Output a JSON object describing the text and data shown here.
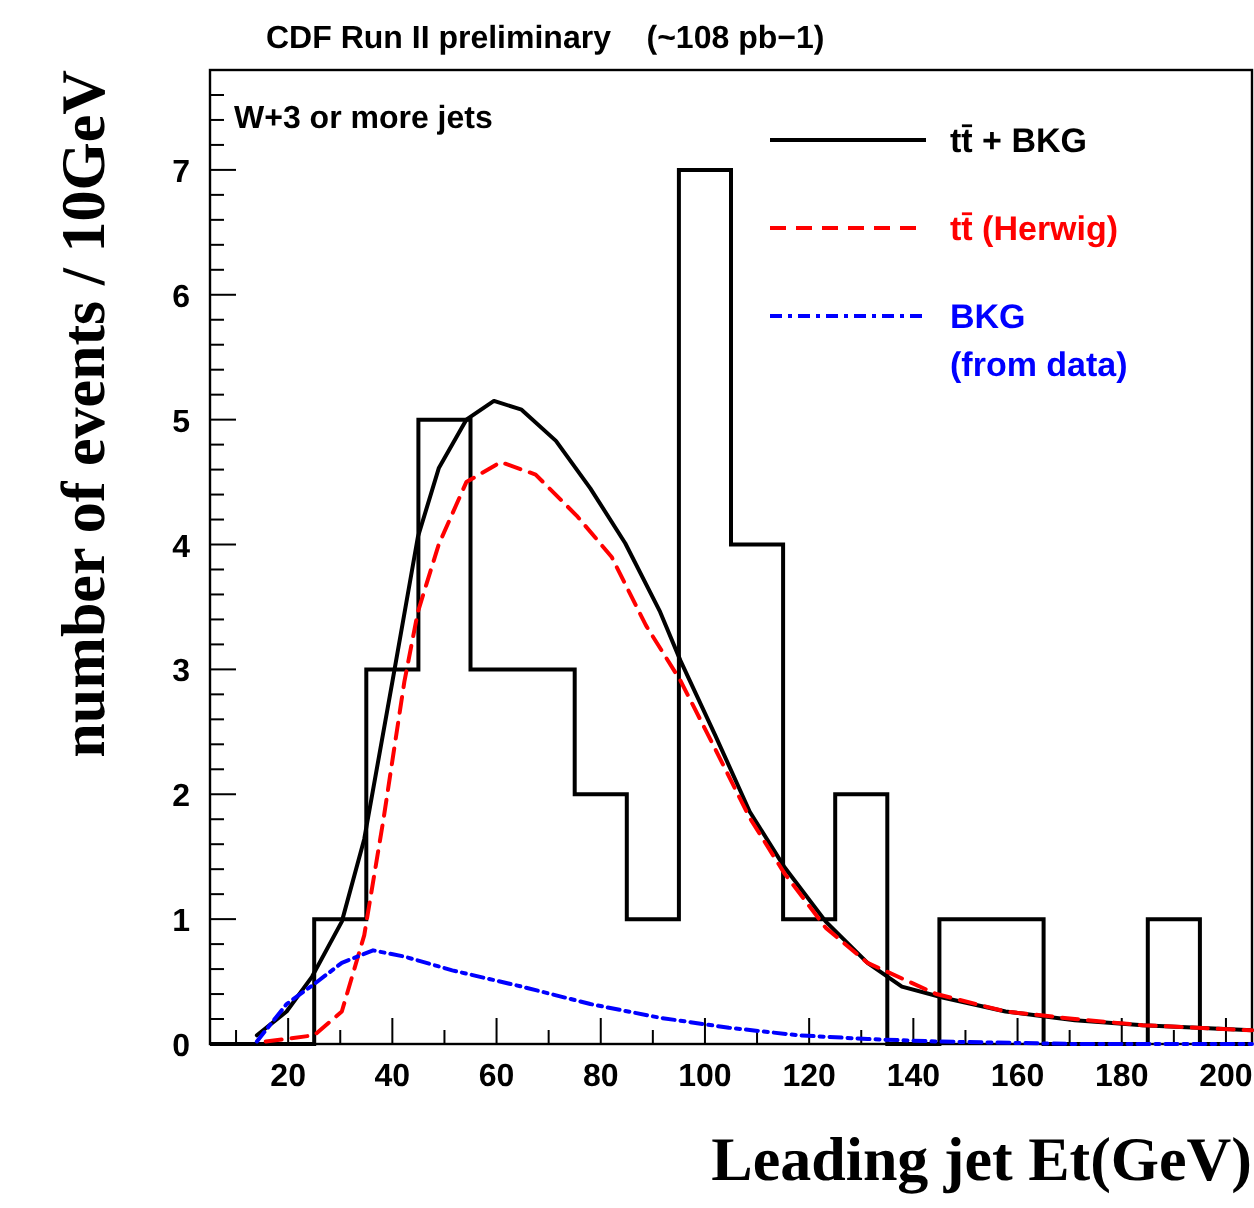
{
  "chart_data": {
    "type": "histogram",
    "title": "CDF Run II preliminary    (~108 pb−1)",
    "xlabel": "Leading jet Et(GeV)",
    "ylabel": "number of events / 10GeV",
    "annotations": [
      "W+3 or more jets"
    ],
    "xlim": [
      5,
      205
    ],
    "ylim": [
      0,
      7.8
    ],
    "xticks": [
      {
        "value": 10,
        "label": null
      },
      20,
      {
        "value": 30,
        "label": null
      },
      40,
      {
        "value": 50,
        "label": null
      },
      60,
      {
        "value": 70,
        "label": null
      },
      80,
      {
        "value": 90,
        "label": null
      },
      100,
      {
        "value": 110,
        "label": null
      },
      120,
      {
        "value": 130,
        "label": null
      },
      140,
      {
        "value": 150,
        "label": null
      },
      160,
      {
        "value": 170,
        "label": null
      },
      180,
      {
        "value": 190,
        "label": null
      },
      200
    ],
    "yticks": [
      0,
      {
        "value": 0.2,
        "label": null
      },
      {
        "value": 0.4,
        "label": null
      },
      {
        "value": 0.6,
        "label": null
      },
      {
        "value": 0.8,
        "label": null
      },
      1,
      {
        "value": 1.2,
        "label": null
      },
      {
        "value": 1.4,
        "label": null
      },
      {
        "value": 1.6,
        "label": null
      },
      {
        "value": 1.8,
        "label": null
      },
      2,
      {
        "value": 2.2,
        "label": null
      },
      {
        "value": 2.4,
        "label": null
      },
      {
        "value": 2.6,
        "label": null
      },
      {
        "value": 2.8,
        "label": null
      },
      3,
      {
        "value": 3.2,
        "label": null
      },
      {
        "value": 3.4,
        "label": null
      },
      {
        "value": 3.6,
        "label": null
      },
      {
        "value": 3.8,
        "label": null
      },
      4,
      {
        "value": 4.2,
        "label": null
      },
      {
        "value": 4.4,
        "label": null
      },
      {
        "value": 4.6,
        "label": null
      },
      {
        "value": 4.8,
        "label": null
      },
      5,
      {
        "value": 5.2,
        "label": null
      },
      {
        "value": 5.4,
        "label": null
      },
      {
        "value": 5.6,
        "label": null
      },
      {
        "value": 5.8,
        "label": null
      },
      6,
      {
        "value": 6.2,
        "label": null
      },
      {
        "value": 6.4,
        "label": null
      },
      {
        "value": 6.6,
        "label": null
      },
      {
        "value": 6.8,
        "label": null
      },
      7,
      {
        "value": 7.2,
        "label": null
      },
      {
        "value": 7.4,
        "label": null
      },
      {
        "value": 7.6,
        "label": null
      }
    ],
    "legend": "top right",
    "grid": false,
    "series": [
      {
        "color": "#000000",
        "bins": [
          5,
          15,
          25,
          35,
          45,
          55,
          65,
          75,
          85,
          95,
          105,
          115,
          125,
          135,
          145,
          155,
          165,
          175,
          185,
          195,
          205
        ],
        "values": [
          0,
          0,
          1,
          3,
          5,
          3,
          3,
          2,
          1,
          7,
          4,
          1,
          2,
          0,
          1,
          1,
          0,
          0,
          1,
          0
        ]
      },
      {
        "type": "line",
        "name": "tt̄ + BKG",
        "color": "#000000",
        "line_style": "solid",
        "x": [
          14,
          19.7,
          24.6,
          30.3,
          34.6,
          40,
          44.9,
          48.9,
          54.2,
          59.5,
          64.8,
          71.4,
          78,
          84.7,
          91.4,
          95.3,
          102,
          108.6,
          115.2,
          123.2,
          131.2,
          137.8,
          145.8,
          157.7,
          171,
          184,
          205
        ],
        "values": [
          0.07,
          0.26,
          0.54,
          0.98,
          1.64,
          2.9,
          4.06,
          4.61,
          5.0,
          5.15,
          5.08,
          4.83,
          4.45,
          4.01,
          3.46,
          3.07,
          2.47,
          1.86,
          1.42,
          0.98,
          0.65,
          0.46,
          0.37,
          0.26,
          0.19,
          0.15,
          0.11
        ]
      },
      {
        "type": "line",
        "name": "tt̄ (Herwig)",
        "color": "#ff0000",
        "line_style": "dashed",
        "x": [
          15.7,
          25,
          30.3,
          34.6,
          38.3,
          42.3,
          44.9,
          48.9,
          54.2,
          60.8,
          67.5,
          75.4,
          82.1,
          88.7,
          95.3,
          102,
          108.6,
          115.2,
          123.2,
          131.2,
          144.4,
          157.7,
          171,
          184,
          205
        ],
        "values": [
          0.02,
          0.07,
          0.26,
          0.87,
          1.8,
          2.9,
          3.46,
          4.0,
          4.5,
          4.66,
          4.56,
          4.23,
          3.9,
          3.35,
          2.91,
          2.36,
          1.81,
          1.37,
          0.93,
          0.65,
          0.4,
          0.26,
          0.2,
          0.15,
          0.11
        ]
      },
      {
        "type": "line",
        "name": "BKG\n(from data)",
        "color": "#0000ff",
        "line_style": "dashdot",
        "x": [
          14,
          19.7,
          25,
          30.3,
          36.3,
          42.3,
          51.5,
          64.8,
          78,
          91.4,
          104.6,
          117.9,
          131.2,
          144.4,
          171,
          205
        ],
        "values": [
          0.02,
          0.32,
          0.48,
          0.65,
          0.75,
          0.7,
          0.59,
          0.46,
          0.32,
          0.21,
          0.13,
          0.07,
          0.04,
          0.02,
          0,
          0
        ]
      }
    ]
  }
}
